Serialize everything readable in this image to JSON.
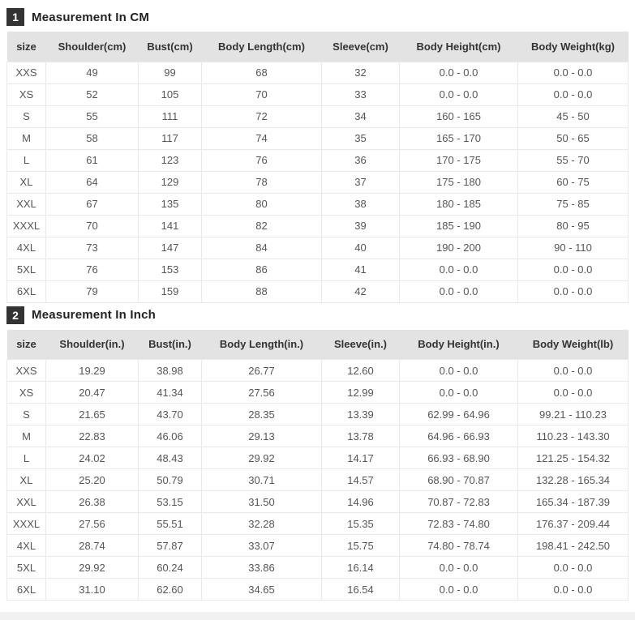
{
  "colors": {
    "badge_background": "#333333",
    "badge_text": "#ffffff",
    "table_header_background": "#e3e3e3",
    "table_header_text": "#333333",
    "cell_text": "#555555",
    "cell_border": "#e9e9e9",
    "bottom_strip": "#f1f1f1"
  },
  "sections": [
    {
      "badge": "1",
      "title": "Measurement In CM",
      "columns": [
        "size",
        "Shoulder(cm)",
        "Bust(cm)",
        "Body Length(cm)",
        "Sleeve(cm)",
        "Body Height(cm)",
        "Body Weight(kg)"
      ],
      "rows": [
        [
          "XXS",
          "49",
          "99",
          "68",
          "32",
          "0.0 - 0.0",
          "0.0 - 0.0"
        ],
        [
          "XS",
          "52",
          "105",
          "70",
          "33",
          "0.0 - 0.0",
          "0.0 - 0.0"
        ],
        [
          "S",
          "55",
          "111",
          "72",
          "34",
          "160 - 165",
          "45 - 50"
        ],
        [
          "M",
          "58",
          "117",
          "74",
          "35",
          "165 - 170",
          "50 - 65"
        ],
        [
          "L",
          "61",
          "123",
          "76",
          "36",
          "170 - 175",
          "55 - 70"
        ],
        [
          "XL",
          "64",
          "129",
          "78",
          "37",
          "175 - 180",
          "60 - 75"
        ],
        [
          "XXL",
          "67",
          "135",
          "80",
          "38",
          "180 - 185",
          "75 - 85"
        ],
        [
          "XXXL",
          "70",
          "141",
          "82",
          "39",
          "185 - 190",
          "80 - 95"
        ],
        [
          "4XL",
          "73",
          "147",
          "84",
          "40",
          "190 - 200",
          "90 - 110"
        ],
        [
          "5XL",
          "76",
          "153",
          "86",
          "41",
          "0.0 - 0.0",
          "0.0 - 0.0"
        ],
        [
          "6XL",
          "79",
          "159",
          "88",
          "42",
          "0.0 - 0.0",
          "0.0 - 0.0"
        ]
      ]
    },
    {
      "badge": "2",
      "title": "Measurement In Inch",
      "columns": [
        "size",
        "Shoulder(in.)",
        "Bust(in.)",
        "Body Length(in.)",
        "Sleeve(in.)",
        "Body Height(in.)",
        "Body Weight(lb)"
      ],
      "rows": [
        [
          "XXS",
          "19.29",
          "38.98",
          "26.77",
          "12.60",
          "0.0 - 0.0",
          "0.0 - 0.0"
        ],
        [
          "XS",
          "20.47",
          "41.34",
          "27.56",
          "12.99",
          "0.0 - 0.0",
          "0.0 - 0.0"
        ],
        [
          "S",
          "21.65",
          "43.70",
          "28.35",
          "13.39",
          "62.99 - 64.96",
          "99.21 - 110.23"
        ],
        [
          "M",
          "22.83",
          "46.06",
          "29.13",
          "13.78",
          "64.96 - 66.93",
          "110.23 - 143.30"
        ],
        [
          "L",
          "24.02",
          "48.43",
          "29.92",
          "14.17",
          "66.93 - 68.90",
          "121.25 - 154.32"
        ],
        [
          "XL",
          "25.20",
          "50.79",
          "30.71",
          "14.57",
          "68.90 - 70.87",
          "132.28 - 165.34"
        ],
        [
          "XXL",
          "26.38",
          "53.15",
          "31.50",
          "14.96",
          "70.87 - 72.83",
          "165.34 - 187.39"
        ],
        [
          "XXXL",
          "27.56",
          "55.51",
          "32.28",
          "15.35",
          "72.83 - 74.80",
          "176.37 - 209.44"
        ],
        [
          "4XL",
          "28.74",
          "57.87",
          "33.07",
          "15.75",
          "74.80 - 78.74",
          "198.41 - 242.50"
        ],
        [
          "5XL",
          "29.92",
          "60.24",
          "33.86",
          "16.14",
          "0.0 - 0.0",
          "0.0 - 0.0"
        ],
        [
          "6XL",
          "31.10",
          "62.60",
          "34.65",
          "16.54",
          "0.0 - 0.0",
          "0.0 - 0.0"
        ]
      ]
    }
  ]
}
